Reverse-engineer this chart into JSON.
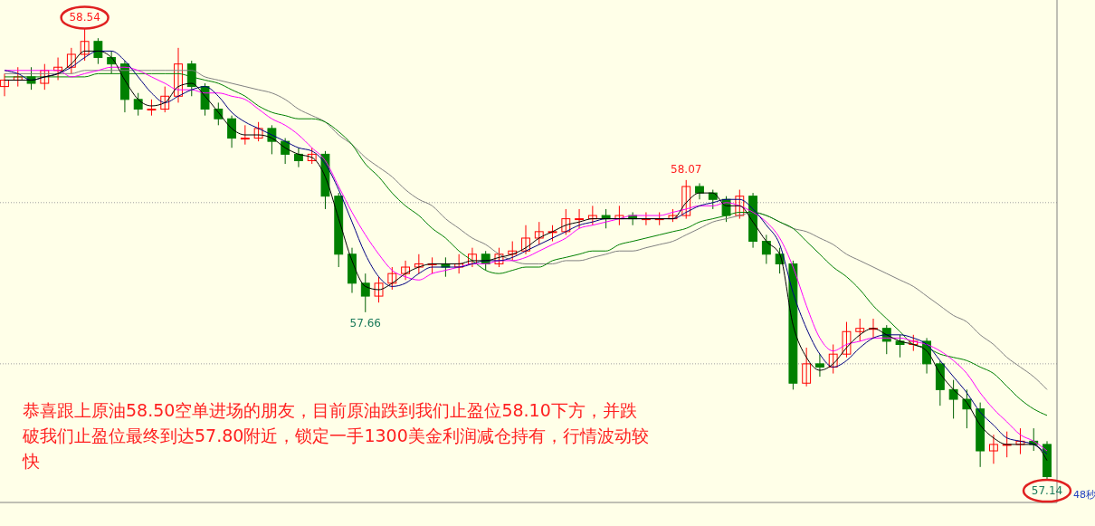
{
  "chart_data": {
    "type": "candlestick",
    "categories": [
      null,
      null,
      null,
      null,
      null,
      null,
      null,
      null,
      null,
      null,
      null,
      null,
      null,
      null,
      null,
      null,
      null,
      null,
      null,
      null,
      null,
      null,
      null,
      null,
      null,
      null,
      null,
      null,
      null,
      null,
      null,
      null,
      null,
      null,
      null,
      null,
      null,
      null,
      null,
      null,
      null,
      null,
      null,
      null,
      null,
      null,
      null,
      null,
      null,
      null,
      null,
      null,
      null,
      null,
      null,
      null,
      null,
      null,
      null,
      null,
      null,
      null,
      null,
      null,
      null,
      null,
      null,
      null,
      null,
      null,
      null,
      null,
      null,
      null,
      null,
      null,
      null,
      null,
      null
    ],
    "ohlc": [
      [
        58.36,
        58.4,
        58.33,
        58.38
      ],
      [
        58.38,
        58.42,
        58.36,
        58.39
      ],
      [
        58.39,
        58.42,
        58.35,
        58.37
      ],
      [
        58.37,
        58.43,
        58.35,
        58.41
      ],
      [
        58.41,
        58.45,
        58.38,
        58.42
      ],
      [
        58.42,
        58.48,
        58.4,
        58.46
      ],
      [
        58.46,
        58.54,
        58.44,
        58.5
      ],
      [
        58.5,
        58.51,
        58.43,
        58.45
      ],
      [
        58.45,
        58.47,
        58.4,
        58.43
      ],
      [
        58.43,
        58.44,
        58.28,
        58.32
      ],
      [
        58.32,
        58.34,
        58.27,
        58.29
      ],
      [
        58.29,
        58.32,
        58.27,
        58.29
      ],
      [
        58.29,
        58.36,
        58.28,
        58.33
      ],
      [
        58.33,
        58.48,
        58.31,
        58.43
      ],
      [
        58.43,
        58.44,
        58.33,
        58.36
      ],
      [
        58.36,
        58.37,
        58.27,
        58.29
      ],
      [
        58.29,
        58.31,
        58.24,
        58.26
      ],
      [
        58.26,
        58.27,
        58.17,
        58.2
      ],
      [
        58.2,
        58.24,
        58.18,
        58.2
      ],
      [
        58.2,
        58.25,
        58.19,
        58.23
      ],
      [
        58.23,
        58.24,
        58.15,
        58.19
      ],
      [
        58.19,
        58.2,
        58.12,
        58.15
      ],
      [
        58.15,
        58.17,
        58.11,
        58.13
      ],
      [
        58.13,
        58.17,
        58.12,
        58.15
      ],
      [
        58.15,
        58.16,
        57.98,
        58.02
      ],
      [
        58.02,
        58.03,
        57.8,
        57.84
      ],
      [
        57.84,
        57.86,
        57.72,
        57.75
      ],
      [
        57.75,
        57.78,
        57.66,
        57.71
      ],
      [
        57.71,
        57.77,
        57.69,
        57.75
      ],
      [
        57.75,
        57.8,
        57.73,
        57.78
      ],
      [
        57.78,
        57.82,
        57.76,
        57.8
      ],
      [
        57.8,
        57.84,
        57.78,
        57.81
      ],
      [
        57.81,
        57.83,
        57.78,
        57.81
      ],
      [
        57.81,
        57.83,
        57.77,
        57.8
      ],
      [
        57.8,
        57.84,
        57.78,
        57.81
      ],
      [
        57.81,
        57.86,
        57.8,
        57.84
      ],
      [
        57.84,
        57.85,
        57.79,
        57.81
      ],
      [
        57.81,
        57.86,
        57.8,
        57.84
      ],
      [
        57.84,
        57.88,
        57.82,
        57.85
      ],
      [
        57.85,
        57.93,
        57.84,
        57.89
      ],
      [
        57.89,
        57.94,
        57.87,
        57.91
      ],
      [
        57.91,
        57.93,
        57.88,
        57.91
      ],
      [
        57.91,
        57.98,
        57.9,
        57.95
      ],
      [
        57.95,
        57.98,
        57.92,
        57.95
      ],
      [
        57.95,
        57.99,
        57.93,
        57.96
      ],
      [
        57.96,
        57.98,
        57.92,
        57.95
      ],
      [
        57.95,
        57.99,
        57.93,
        57.96
      ],
      [
        57.96,
        57.97,
        57.93,
        57.95
      ],
      [
        57.95,
        57.97,
        57.93,
        57.95
      ],
      [
        57.95,
        57.97,
        57.93,
        57.95
      ],
      [
        57.95,
        57.98,
        57.94,
        57.96
      ],
      [
        57.96,
        58.07,
        57.95,
        58.05
      ],
      [
        58.05,
        58.06,
        58.01,
        58.03
      ],
      [
        58.03,
        58.04,
        57.98,
        58.01
      ],
      [
        58.01,
        58.02,
        57.94,
        57.96
      ],
      [
        57.96,
        58.04,
        57.95,
        58.02
      ],
      [
        58.02,
        58.03,
        57.86,
        57.88
      ],
      [
        57.88,
        57.9,
        57.81,
        57.84
      ],
      [
        57.84,
        57.86,
        57.78,
        57.81
      ],
      [
        57.81,
        57.82,
        57.42,
        57.44
      ],
      [
        57.44,
        57.55,
        57.43,
        57.5
      ],
      [
        57.5,
        57.53,
        57.46,
        57.49
      ],
      [
        57.49,
        57.56,
        57.47,
        57.53
      ],
      [
        57.53,
        57.63,
        57.52,
        57.6
      ],
      [
        57.6,
        57.64,
        57.57,
        57.61
      ],
      [
        57.61,
        57.64,
        57.58,
        57.61
      ],
      [
        57.61,
        57.62,
        57.53,
        57.57
      ],
      [
        57.57,
        57.59,
        57.52,
        57.56
      ],
      [
        57.56,
        57.59,
        57.54,
        57.57
      ],
      [
        57.57,
        57.58,
        57.47,
        57.5
      ],
      [
        57.5,
        57.51,
        57.37,
        57.42
      ],
      [
        57.42,
        57.45,
        57.33,
        57.39
      ],
      [
        57.39,
        57.42,
        57.3,
        57.36
      ],
      [
        57.36,
        57.38,
        57.18,
        57.23
      ],
      [
        57.23,
        57.28,
        57.19,
        57.25
      ],
      [
        57.25,
        57.29,
        57.21,
        57.25
      ],
      [
        57.25,
        57.3,
        57.22,
        57.26
      ],
      [
        57.26,
        57.3,
        57.23,
        57.25
      ],
      [
        57.25,
        57.26,
        57.14,
        57.15
      ]
    ],
    "series": [
      {
        "type": "line",
        "color": "#808080",
        "values": [
          58.4,
          58.4,
          58.4,
          58.4,
          58.4,
          58.4,
          58.41,
          58.41,
          58.41,
          58.41,
          58.41,
          58.41,
          58.41,
          58.41,
          58.41,
          58.39,
          58.38,
          58.37,
          58.36,
          58.35,
          58.34,
          58.32,
          58.29,
          58.27,
          58.25,
          58.21,
          58.18,
          58.14,
          58.11,
          58.08,
          58.04,
          58.01,
          57.99,
          57.95,
          57.92,
          57.89,
          57.87,
          57.84,
          57.82,
          57.81,
          57.81,
          57.81,
          57.82,
          57.82,
          57.83,
          57.84,
          57.85,
          57.85,
          57.86,
          57.87,
          57.88,
          57.9,
          57.92,
          57.94,
          57.95,
          57.96,
          57.97,
          57.96,
          57.94,
          57.92,
          57.91,
          57.89,
          57.87,
          57.84,
          57.82,
          57.8,
          57.78,
          57.76,
          57.74,
          57.71,
          57.68,
          57.65,
          57.63,
          57.59,
          57.56,
          57.52,
          57.49,
          57.46,
          57.42
        ]
      },
      {
        "type": "line",
        "color": "#008000",
        "values": [
          58.39,
          58.39,
          58.39,
          58.39,
          58.39,
          58.39,
          58.39,
          58.4,
          58.4,
          58.4,
          58.4,
          58.4,
          58.4,
          58.4,
          58.39,
          58.38,
          58.37,
          58.35,
          58.33,
          58.3,
          58.28,
          58.27,
          58.26,
          58.26,
          58.25,
          58.22,
          58.18,
          58.12,
          58.08,
          58.03,
          57.99,
          57.96,
          57.92,
          57.89,
          57.85,
          57.82,
          57.79,
          57.78,
          57.79,
          57.8,
          57.8,
          57.82,
          57.83,
          57.84,
          57.85,
          57.85,
          57.87,
          57.88,
          57.89,
          57.9,
          57.91,
          57.92,
          57.94,
          57.95,
          57.96,
          57.97,
          57.97,
          57.96,
          57.94,
          57.92,
          57.88,
          57.84,
          57.8,
          57.77,
          57.73,
          57.68,
          57.64,
          57.6,
          57.56,
          57.55,
          57.53,
          57.52,
          57.51,
          57.49,
          57.47,
          57.43,
          57.39,
          57.36,
          57.34
        ]
      },
      {
        "type": "line",
        "color": "#ff00ff",
        "values": [
          58.41,
          58.41,
          58.41,
          58.41,
          58.41,
          58.39,
          58.4,
          58.41,
          58.42,
          58.42,
          58.41,
          58.39,
          58.37,
          58.35,
          58.35,
          58.34,
          58.34,
          58.33,
          58.32,
          58.29,
          58.26,
          58.24,
          58.21,
          58.17,
          58.13,
          58.05,
          57.97,
          57.9,
          57.84,
          57.79,
          57.77,
          57.76,
          57.78,
          57.79,
          57.8,
          57.81,
          57.81,
          57.82,
          57.82,
          57.83,
          57.85,
          57.87,
          57.89,
          57.92,
          57.93,
          57.94,
          57.95,
          57.96,
          57.96,
          57.96,
          57.97,
          57.98,
          57.99,
          57.99,
          58.0,
          57.99,
          57.97,
          57.94,
          57.89,
          57.8,
          57.68,
          57.58,
          57.54,
          57.56,
          57.57,
          57.58,
          57.58,
          57.58,
          57.57,
          57.56,
          57.54,
          57.51,
          57.47,
          57.41,
          57.36,
          57.32,
          57.28,
          57.26,
          57.23
        ]
      },
      {
        "type": "line",
        "color": "#000080",
        "values": [
          58.41,
          58.4,
          58.38,
          58.39,
          58.4,
          58.42,
          58.45,
          58.47,
          58.47,
          58.44,
          58.39,
          58.34,
          58.31,
          58.33,
          58.35,
          58.36,
          58.33,
          58.28,
          58.25,
          58.23,
          58.21,
          58.19,
          58.17,
          58.16,
          58.12,
          58.04,
          57.94,
          57.84,
          57.77,
          57.74,
          57.75,
          57.78,
          57.8,
          57.8,
          57.8,
          57.81,
          57.82,
          57.82,
          57.83,
          57.85,
          57.87,
          57.89,
          57.91,
          57.93,
          57.94,
          57.95,
          57.95,
          57.95,
          57.95,
          57.95,
          57.95,
          57.97,
          57.99,
          58.0,
          58.01,
          58.01,
          57.98,
          57.93,
          57.87,
          57.72,
          57.61,
          57.53,
          57.49,
          57.51,
          57.55,
          57.58,
          57.59,
          57.59,
          57.58,
          57.56,
          57.51,
          57.46,
          57.41,
          57.35,
          57.31,
          57.27,
          57.26,
          57.25,
          57.22
        ]
      },
      {
        "type": "line",
        "color": "#000000",
        "values": [
          58.38,
          58.38,
          58.38,
          58.39,
          58.4,
          58.43,
          58.47,
          58.47,
          58.45,
          58.38,
          58.32,
          58.3,
          58.31,
          58.36,
          58.37,
          58.33,
          58.28,
          58.23,
          58.21,
          58.21,
          58.2,
          58.17,
          58.15,
          58.14,
          58.08,
          57.95,
          57.82,
          57.74,
          57.73,
          57.75,
          57.78,
          57.8,
          57.81,
          57.81,
          57.81,
          57.82,
          57.82,
          57.83,
          57.84,
          57.86,
          57.89,
          57.91,
          57.93,
          57.94,
          57.95,
          57.95,
          57.95,
          57.95,
          57.95,
          57.95,
          57.95,
          58.0,
          58.03,
          58.03,
          57.99,
          57.99,
          57.94,
          57.88,
          57.84,
          57.62,
          57.52,
          57.48,
          57.5,
          57.55,
          57.59,
          57.61,
          57.59,
          57.57,
          57.56,
          57.54,
          57.47,
          57.42,
          57.38,
          57.31,
          57.27,
          57.25,
          57.25,
          57.25,
          57.2
        ]
      }
    ],
    "ylim": [
      57.07,
      58.62
    ],
    "yticks": [
      {
        "value": 58.0,
        "label": null
      },
      {
        "value": 57.5,
        "label": null
      }
    ],
    "grid": "y",
    "annotations": [
      {
        "text": "58.54",
        "y": 58.54
      },
      {
        "text": "58.07",
        "y": 58.07
      },
      {
        "text": "57.66",
        "y": 57.66
      },
      {
        "text": "57.14",
        "y": 57.14
      },
      "恭喜跟上原油58.50空单进场的朋友，目前原油跌到我们止盈位58.10下方，并跌破我们止盈位最终到达57.80附近，锁定一手1300美金利润减仓持有，行情波动较快",
      "48秒"
    ]
  }
}
